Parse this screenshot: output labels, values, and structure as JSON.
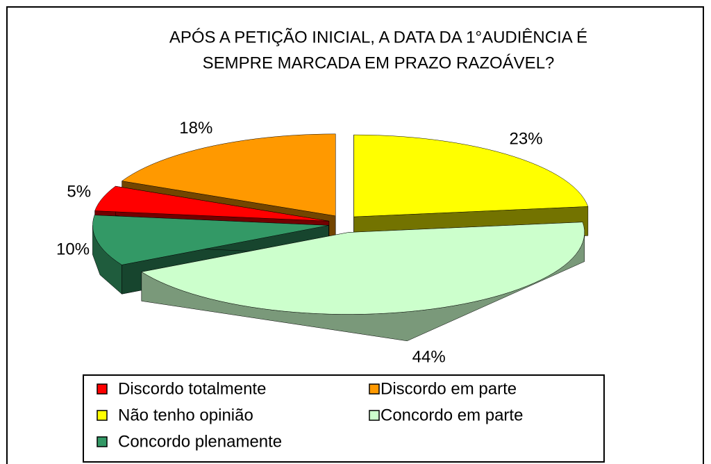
{
  "chart_data": {
    "type": "pie3d",
    "title": [
      "APÓS A PETIÇÃO INICIAL, A DATA DA 1°AUDIÊNCIA É",
      "SEMPRE MARCADA EM PRAZO RAZOÁVEL?"
    ],
    "categories": [
      "Não tenho opinião",
      "Concordo em parte",
      "Concordo plenamente",
      "Discordo totalmente",
      "Discordo em parte"
    ],
    "values": [
      23,
      44,
      10,
      5,
      18
    ],
    "value_labels": [
      "23%",
      "44%",
      "10%",
      "5%",
      "18%"
    ],
    "colors": [
      "#ffff00",
      "#ccffcc",
      "#339966",
      "#ff0000",
      "#ff9900"
    ],
    "legend_order": [
      3,
      4,
      0,
      1,
      2
    ]
  }
}
